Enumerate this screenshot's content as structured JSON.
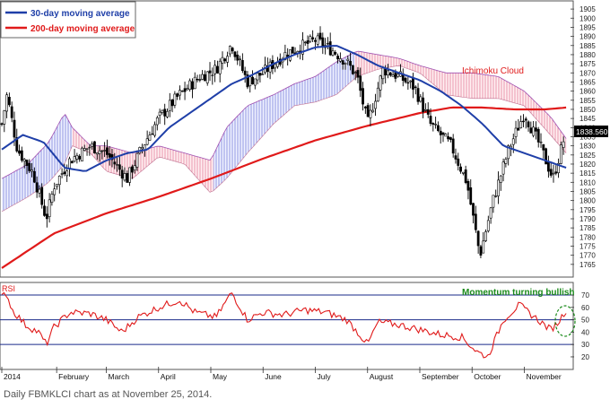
{
  "caption": "Daily FBMKLCI chart as at November 25, 2014.",
  "chart_data": [
    {
      "type": "candlestick",
      "subtype": "price with moving averages and Ichimoku cloud",
      "legend": [
        {
          "name": "30-day moving average",
          "color": "#1f3fa8"
        },
        {
          "name": "200-day moving average",
          "color": "#e01a1a"
        }
      ],
      "annotation": "Ichimoku Cloud",
      "last_price_label": "1838.560",
      "y_ticks": [
        1765,
        1770,
        1775,
        1780,
        1785,
        1790,
        1795,
        1800,
        1805,
        1810,
        1815,
        1820,
        1825,
        1830,
        1835,
        1840,
        1845,
        1850,
        1855,
        1860,
        1865,
        1870,
        1875,
        1880,
        1885,
        1890,
        1895,
        1900,
        1905
      ],
      "ylim": [
        1760,
        1908
      ],
      "x_labels": [
        "2014",
        "February",
        "March",
        "April",
        "May",
        "June",
        "July",
        "August",
        "September",
        "October",
        "November"
      ],
      "price_close_keypoints": [
        {
          "month_pos": 0.0,
          "value": 1842
        },
        {
          "month_pos": 0.1,
          "value": 1858
        },
        {
          "month_pos": 0.3,
          "value": 1828
        },
        {
          "month_pos": 0.6,
          "value": 1815
        },
        {
          "month_pos": 0.85,
          "value": 1790
        },
        {
          "month_pos": 1.0,
          "value": 1808
        },
        {
          "month_pos": 1.3,
          "value": 1822
        },
        {
          "month_pos": 1.7,
          "value": 1830
        },
        {
          "month_pos": 2.0,
          "value": 1826
        },
        {
          "month_pos": 2.4,
          "value": 1812
        },
        {
          "month_pos": 2.7,
          "value": 1830
        },
        {
          "month_pos": 3.0,
          "value": 1845
        },
        {
          "month_pos": 3.4,
          "value": 1858
        },
        {
          "month_pos": 3.8,
          "value": 1868
        },
        {
          "month_pos": 4.1,
          "value": 1872
        },
        {
          "month_pos": 4.4,
          "value": 1886
        },
        {
          "month_pos": 4.7,
          "value": 1865
        },
        {
          "month_pos": 5.0,
          "value": 1870
        },
        {
          "month_pos": 5.4,
          "value": 1880
        },
        {
          "month_pos": 5.7,
          "value": 1884
        },
        {
          "month_pos": 6.0,
          "value": 1888
        },
        {
          "month_pos": 6.35,
          "value": 1882
        },
        {
          "month_pos": 6.6,
          "value": 1876
        },
        {
          "month_pos": 6.8,
          "value": 1868
        },
        {
          "month_pos": 7.0,
          "value": 1842
        },
        {
          "month_pos": 7.3,
          "value": 1872
        },
        {
          "month_pos": 7.6,
          "value": 1868
        },
        {
          "month_pos": 7.9,
          "value": 1862
        },
        {
          "month_pos": 8.2,
          "value": 1842
        },
        {
          "month_pos": 8.6,
          "value": 1830
        },
        {
          "month_pos": 8.9,
          "value": 1810
        },
        {
          "month_pos": 9.15,
          "value": 1770
        },
        {
          "month_pos": 9.4,
          "value": 1800
        },
        {
          "month_pos": 9.7,
          "value": 1828
        },
        {
          "month_pos": 10.0,
          "value": 1848
        },
        {
          "month_pos": 10.3,
          "value": 1830
        },
        {
          "month_pos": 10.55,
          "value": 1812
        },
        {
          "month_pos": 10.8,
          "value": 1838
        }
      ],
      "ma30_keypoints": [
        {
          "month_pos": 0.0,
          "value": 1828
        },
        {
          "month_pos": 0.4,
          "value": 1836
        },
        {
          "month_pos": 0.8,
          "value": 1832
        },
        {
          "month_pos": 1.2,
          "value": 1818
        },
        {
          "month_pos": 1.6,
          "value": 1816
        },
        {
          "month_pos": 2.0,
          "value": 1822
        },
        {
          "month_pos": 2.4,
          "value": 1826
        },
        {
          "month_pos": 2.8,
          "value": 1828
        },
        {
          "month_pos": 3.2,
          "value": 1840
        },
        {
          "month_pos": 3.6,
          "value": 1848
        },
        {
          "month_pos": 4.0,
          "value": 1856
        },
        {
          "month_pos": 4.4,
          "value": 1864
        },
        {
          "month_pos": 4.8,
          "value": 1869
        },
        {
          "month_pos": 5.2,
          "value": 1875
        },
        {
          "month_pos": 5.6,
          "value": 1880
        },
        {
          "month_pos": 6.0,
          "value": 1884
        },
        {
          "month_pos": 6.4,
          "value": 1885
        },
        {
          "month_pos": 6.8,
          "value": 1880
        },
        {
          "month_pos": 7.2,
          "value": 1874
        },
        {
          "month_pos": 7.6,
          "value": 1870
        },
        {
          "month_pos": 8.0,
          "value": 1866
        },
        {
          "month_pos": 8.4,
          "value": 1860
        },
        {
          "month_pos": 8.8,
          "value": 1852
        },
        {
          "month_pos": 9.2,
          "value": 1842
        },
        {
          "month_pos": 9.6,
          "value": 1830
        },
        {
          "month_pos": 10.0,
          "value": 1826
        },
        {
          "month_pos": 10.4,
          "value": 1822
        },
        {
          "month_pos": 10.8,
          "value": 1818
        }
      ],
      "ma200_keypoints": [
        {
          "month_pos": 0.0,
          "value": 1763
        },
        {
          "month_pos": 1.0,
          "value": 1782
        },
        {
          "month_pos": 2.0,
          "value": 1793
        },
        {
          "month_pos": 3.0,
          "value": 1802
        },
        {
          "month_pos": 4.0,
          "value": 1812
        },
        {
          "month_pos": 5.0,
          "value": 1823
        },
        {
          "month_pos": 6.0,
          "value": 1833
        },
        {
          "month_pos": 7.0,
          "value": 1841
        },
        {
          "month_pos": 8.0,
          "value": 1848
        },
        {
          "month_pos": 8.6,
          "value": 1851
        },
        {
          "month_pos": 9.2,
          "value": 1851
        },
        {
          "month_pos": 9.8,
          "value": 1850
        },
        {
          "month_pos": 10.4,
          "value": 1850
        },
        {
          "month_pos": 10.8,
          "value": 1851
        }
      ],
      "cloud_upper_keypoints": [
        {
          "month_pos": 0.0,
          "value": 1812
        },
        {
          "month_pos": 0.5,
          "value": 1820
        },
        {
          "month_pos": 0.9,
          "value": 1832
        },
        {
          "month_pos": 1.2,
          "value": 1848
        },
        {
          "month_pos": 1.35,
          "value": 1840
        },
        {
          "month_pos": 1.7,
          "value": 1830
        },
        {
          "month_pos": 2.0,
          "value": 1830
        },
        {
          "month_pos": 2.5,
          "value": 1826
        },
        {
          "month_pos": 3.0,
          "value": 1830
        },
        {
          "month_pos": 3.5,
          "value": 1826
        },
        {
          "month_pos": 4.0,
          "value": 1822
        },
        {
          "month_pos": 4.3,
          "value": 1840
        },
        {
          "month_pos": 4.7,
          "value": 1852
        },
        {
          "month_pos": 5.2,
          "value": 1858
        },
        {
          "month_pos": 5.6,
          "value": 1864
        },
        {
          "month_pos": 6.0,
          "value": 1868
        },
        {
          "month_pos": 6.4,
          "value": 1876
        },
        {
          "month_pos": 6.8,
          "value": 1882
        },
        {
          "month_pos": 7.2,
          "value": 1880
        },
        {
          "month_pos": 7.6,
          "value": 1878
        },
        {
          "month_pos": 8.0,
          "value": 1874
        },
        {
          "month_pos": 8.5,
          "value": 1870
        },
        {
          "month_pos": 9.0,
          "value": 1870
        },
        {
          "month_pos": 9.5,
          "value": 1868
        },
        {
          "month_pos": 10.0,
          "value": 1860
        },
        {
          "month_pos": 10.5,
          "value": 1846
        },
        {
          "month_pos": 10.8,
          "value": 1834
        }
      ],
      "cloud_lower_keypoints": [
        {
          "month_pos": 0.0,
          "value": 1794
        },
        {
          "month_pos": 0.5,
          "value": 1802
        },
        {
          "month_pos": 0.9,
          "value": 1810
        },
        {
          "month_pos": 1.2,
          "value": 1820
        },
        {
          "month_pos": 1.35,
          "value": 1830
        },
        {
          "month_pos": 1.7,
          "value": 1826
        },
        {
          "month_pos": 2.0,
          "value": 1816
        },
        {
          "month_pos": 2.5,
          "value": 1812
        },
        {
          "month_pos": 3.0,
          "value": 1824
        },
        {
          "month_pos": 3.5,
          "value": 1820
        },
        {
          "month_pos": 4.0,
          "value": 1804
        },
        {
          "month_pos": 4.3,
          "value": 1812
        },
        {
          "month_pos": 4.7,
          "value": 1826
        },
        {
          "month_pos": 5.2,
          "value": 1842
        },
        {
          "month_pos": 5.6,
          "value": 1852
        },
        {
          "month_pos": 6.0,
          "value": 1854
        },
        {
          "month_pos": 6.4,
          "value": 1858
        },
        {
          "month_pos": 6.8,
          "value": 1868
        },
        {
          "month_pos": 7.2,
          "value": 1872
        },
        {
          "month_pos": 7.6,
          "value": 1874
        },
        {
          "month_pos": 8.0,
          "value": 1870
        },
        {
          "month_pos": 8.5,
          "value": 1858
        },
        {
          "month_pos": 9.0,
          "value": 1856
        },
        {
          "month_pos": 9.5,
          "value": 1856
        },
        {
          "month_pos": 10.0,
          "value": 1852
        },
        {
          "month_pos": 10.5,
          "value": 1836
        },
        {
          "month_pos": 10.8,
          "value": 1826
        }
      ]
    },
    {
      "type": "line",
      "title": "RSI",
      "annotation": "Momentum turning bullish",
      "y_ticks": [
        20,
        30,
        40,
        50,
        60,
        70
      ],
      "ylim": [
        12,
        78
      ],
      "reference_lines": [
        70,
        50,
        30
      ],
      "rsi_keypoints": [
        {
          "month_pos": 0.0,
          "value": 68
        },
        {
          "month_pos": 0.08,
          "value": 72
        },
        {
          "month_pos": 0.2,
          "value": 58
        },
        {
          "month_pos": 0.45,
          "value": 46
        },
        {
          "month_pos": 0.7,
          "value": 40
        },
        {
          "month_pos": 0.85,
          "value": 30
        },
        {
          "month_pos": 1.0,
          "value": 44
        },
        {
          "month_pos": 1.3,
          "value": 56
        },
        {
          "month_pos": 1.7,
          "value": 55
        },
        {
          "month_pos": 2.0,
          "value": 50
        },
        {
          "month_pos": 2.3,
          "value": 40
        },
        {
          "month_pos": 2.6,
          "value": 52
        },
        {
          "month_pos": 3.0,
          "value": 60
        },
        {
          "month_pos": 3.4,
          "value": 66
        },
        {
          "month_pos": 3.7,
          "value": 56
        },
        {
          "month_pos": 4.1,
          "value": 52
        },
        {
          "month_pos": 4.4,
          "value": 72
        },
        {
          "month_pos": 4.7,
          "value": 50
        },
        {
          "month_pos": 5.0,
          "value": 56
        },
        {
          "month_pos": 5.4,
          "value": 54
        },
        {
          "month_pos": 5.8,
          "value": 58
        },
        {
          "month_pos": 6.2,
          "value": 56
        },
        {
          "month_pos": 6.6,
          "value": 50
        },
        {
          "month_pos": 6.85,
          "value": 38
        },
        {
          "month_pos": 7.0,
          "value": 30
        },
        {
          "month_pos": 7.2,
          "value": 48
        },
        {
          "month_pos": 7.6,
          "value": 46
        },
        {
          "month_pos": 8.0,
          "value": 42
        },
        {
          "month_pos": 8.4,
          "value": 38
        },
        {
          "month_pos": 8.8,
          "value": 36
        },
        {
          "month_pos": 9.1,
          "value": 24
        },
        {
          "month_pos": 9.3,
          "value": 20
        },
        {
          "month_pos": 9.6,
          "value": 50
        },
        {
          "month_pos": 9.9,
          "value": 62
        },
        {
          "month_pos": 10.2,
          "value": 52
        },
        {
          "month_pos": 10.5,
          "value": 42
        },
        {
          "month_pos": 10.65,
          "value": 48
        },
        {
          "month_pos": 10.8,
          "value": 58
        }
      ]
    }
  ]
}
